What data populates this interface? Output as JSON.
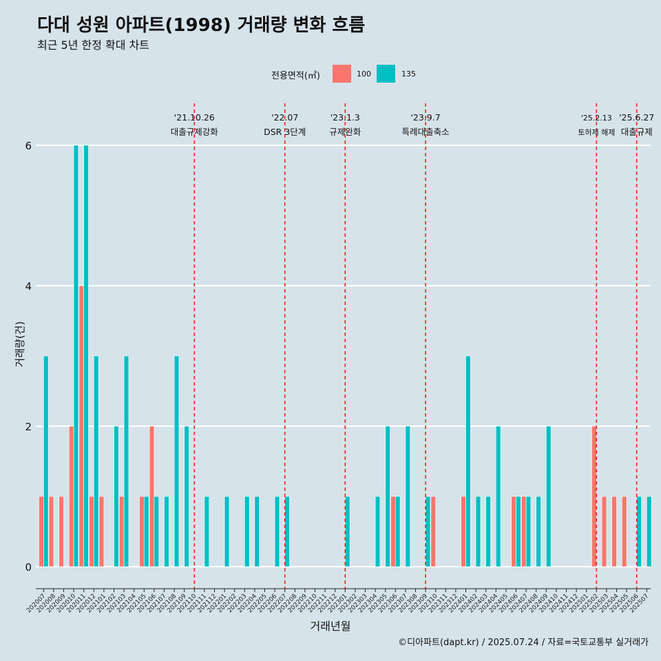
{
  "chart_data": {
    "type": "bar",
    "title": "다대 성원 아파트(1998) 거래량 변화 흐름",
    "subtitle": "최근 5년 한정 확대 차트",
    "xlabel": "거래년월",
    "ylabel": "거래량(건)",
    "ylim": [
      0,
      6.5
    ],
    "yticks": [
      0,
      2,
      4,
      6
    ],
    "legend_title": "전용면적(㎡)",
    "legend_position": "top",
    "caption": "©디아파트(dapt.kr) / 2025.07.24 / 자료=국토교통부 실거래가",
    "categories": [
      "202007",
      "202008",
      "202009",
      "202010",
      "202011",
      "202012",
      "202101",
      "202102",
      "202103",
      "202104",
      "202105",
      "202106",
      "202107",
      "202108",
      "202109",
      "202110",
      "202111",
      "202112",
      "202201",
      "202202",
      "202203",
      "202204",
      "202205",
      "202206",
      "202207",
      "202208",
      "202209",
      "202210",
      "202211",
      "202212",
      "202301",
      "202302",
      "202303",
      "202304",
      "202305",
      "202306",
      "202307",
      "202308",
      "202309",
      "202310",
      "202311",
      "202312",
      "202401",
      "202402",
      "202403",
      "202404",
      "202405",
      "202406",
      "202407",
      "202408",
      "202409",
      "202410",
      "202411",
      "202412",
      "202501",
      "202502",
      "202503",
      "202504",
      "202505",
      "202506",
      "202507"
    ],
    "series": [
      {
        "name": "100",
        "color": "#f8766d",
        "values": [
          1,
          1,
          1,
          2,
          4,
          1,
          1,
          0,
          1,
          0,
          1,
          2,
          0,
          0,
          0,
          0,
          0,
          0,
          0,
          0,
          0,
          0,
          0,
          0,
          0,
          0,
          0,
          0,
          0,
          0,
          0,
          0,
          0,
          0,
          0,
          1,
          0,
          0,
          0,
          1,
          0,
          0,
          1,
          0,
          0,
          0,
          0,
          1,
          1,
          0,
          0,
          0,
          0,
          0,
          0,
          2,
          1,
          1,
          1,
          0,
          0
        ]
      },
      {
        "name": "135",
        "color": "#00bfc4",
        "values": [
          3,
          0,
          0,
          6,
          6,
          3,
          0,
          2,
          3,
          0,
          1,
          1,
          1,
          3,
          2,
          0,
          1,
          0,
          1,
          0,
          1,
          1,
          0,
          1,
          1,
          0,
          0,
          0,
          0,
          0,
          1,
          0,
          0,
          1,
          2,
          1,
          2,
          0,
          1,
          0,
          0,
          0,
          3,
          1,
          1,
          2,
          0,
          1,
          1,
          1,
          2,
          0,
          0,
          0,
          0,
          0,
          0,
          0,
          0,
          1,
          1
        ]
      }
    ],
    "events": [
      {
        "date": "'21.10.26",
        "label": "대출규제강화",
        "at": "202110"
      },
      {
        "date": "'22.07",
        "label": "DSR 3단계",
        "at": "202207"
      },
      {
        "date": "'23.1.3",
        "label": "규제완화",
        "at": "202301"
      },
      {
        "date": "'23.9.7",
        "label": "특례대출축소",
        "at": "202309"
      },
      {
        "date": "'25.2.13",
        "label": "토허제 해제",
        "at": "202502"
      },
      {
        "date": "'25.6.27",
        "label": "대출규제",
        "at": "202506"
      }
    ]
  }
}
